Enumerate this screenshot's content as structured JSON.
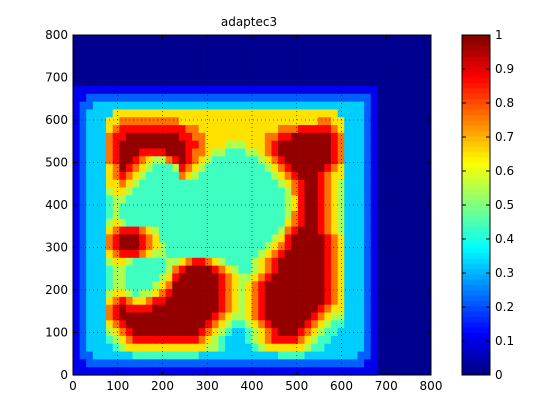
{
  "chart_data": [
    {
      "type": "heatmap",
      "title": "adaptec3",
      "xlabel": "",
      "ylabel": "",
      "xlim": [
        0,
        800
      ],
      "ylim": [
        0,
        800
      ],
      "x_ticks": [
        0,
        100,
        200,
        300,
        400,
        500,
        600,
        700,
        800
      ],
      "y_ticks": [
        0,
        100,
        200,
        300,
        400,
        500,
        600,
        700,
        800
      ],
      "grid": "dotted",
      "colormap": "jet",
      "data_extent": {
        "x": [
          0,
          680
        ],
        "y": [
          0,
          680
        ]
      },
      "grid_cells": [
        "1111111111111111111111111111111111111111111111",
        "1122222222222222222222222222222222222222222221",
        "1223333333333333333333333333333333333333333321",
        "1233336666666666666666666666666666666666333321",
        "1233366777777777666666666666666666666776633321",
        "1233367888888888877666666666666777888887633321",
        "1233378899999999887766666666677889999998733321",
        "1233378999999999988766655566678999999998733321",
        "1233378999888899987765544455678999999998733321",
        "1233378998765578987654444444567899999998733321",
        "1233367987654445876544444444456789999987633321",
        "1233367876544444765444444444445678999876633321",
        "1233366765444444444444444444444567899876533321",
        "1233356654444444444444444444444457899876533321",
        "1233345544444444444444444444444456899876533321",
        "1233345444444444444444444444444456899876533321",
        "1233345444444444444444444444444457899876533321",
        "1233356544444444444444444444444467899876533321",
        "1233367888765444444444444444444578999876533321",
        "1233378999876444444444444444445689999987633321",
        "1233378999876544444444444444456789999987633321",
        "1233367888765544444444444444567899999987633321",
        "1233356654444455678876544445678999999987633321",
        "1233345544444457899998765445678999999987633321",
        "1233345544444568999999876556789999999987633321",
        "1233345544445679999999876567899999999987633321",
        "1233356654556789999999876567899999999987633321",
        "1233367876678899999999876567899999999987633321",
        "1233378988889999999999876567899999999876633321",
        "1233378999999999999998765567899999998765533321",
        "1233367899999999999987654456789999987654433321",
        "1233356789999999999876543345678999876544333321",
        "1233345678888888888765433345678888765443333321",
        "1233334566666666666655433334566666654433333321",
        "1223333334444444444333333333333444433333333221",
        "1122222222222222222222222222222222222222222211",
        "1111111111111111111111111111111111111111111111"
      ],
      "colorbar": {
        "range": [
          0,
          1
        ],
        "ticks": [
          "0",
          "0.1",
          "0.2",
          "0.3",
          "0.4",
          "0.5",
          "0.6",
          "0.7",
          "0.8",
          "0.9",
          "1"
        ],
        "colormap": "jet"
      }
    }
  ]
}
